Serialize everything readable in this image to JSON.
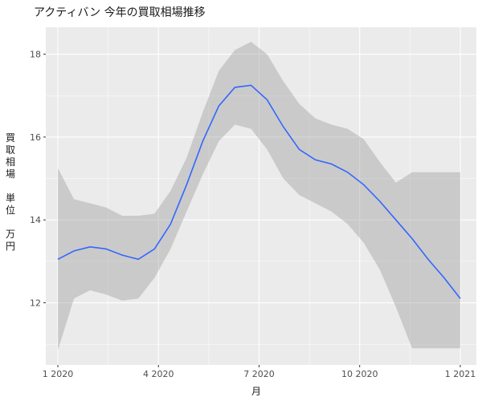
{
  "chart_data": {
    "type": "line",
    "title": "アクティバン 今年の買取相場推移",
    "xlabel": "月",
    "ylabel_lines": [
      "買",
      "取",
      "相",
      "場",
      "",
      "単",
      "位",
      "",
      "万",
      "円"
    ],
    "x_tick_labels": [
      "1 2020",
      "4 2020",
      "7 2020",
      "10 2020",
      "1 2021"
    ],
    "x_ticks": [
      2020.0,
      2020.25,
      2020.5,
      2020.75,
      2021.0
    ],
    "y_tick_labels": [
      "12",
      "14",
      "16",
      "18"
    ],
    "y_ticks": [
      12,
      14,
      16,
      18
    ],
    "xlim": [
      2019.97,
      2021.04
    ],
    "ylim": [
      10.5,
      18.65
    ],
    "grid": true,
    "series": [
      {
        "x": [
          2020.0,
          2020.04,
          2020.08,
          2020.12,
          2020.16,
          2020.2,
          2020.24,
          2020.28,
          2020.32,
          2020.36,
          2020.4,
          2020.44,
          2020.48,
          2020.52,
          2020.56,
          2020.6,
          2020.64,
          2020.68,
          2020.72,
          2020.76,
          2020.8,
          2020.84,
          2020.88,
          2020.92,
          2020.96,
          2021.0
        ],
        "y": [
          13.05,
          13.25,
          13.35,
          13.3,
          13.15,
          13.05,
          13.3,
          13.9,
          14.85,
          15.9,
          16.75,
          17.2,
          17.25,
          16.9,
          16.25,
          15.7,
          15.45,
          15.35,
          15.15,
          14.85,
          14.45,
          14.0,
          13.55,
          13.05,
          12.6,
          12.1
        ],
        "lower": [
          10.85,
          12.1,
          12.3,
          12.2,
          12.05,
          12.1,
          12.6,
          13.3,
          14.2,
          15.1,
          15.9,
          16.3,
          16.2,
          15.7,
          15.0,
          14.6,
          14.4,
          14.2,
          13.9,
          13.45,
          12.8,
          11.9,
          10.9,
          10.9,
          10.9,
          10.9
        ],
        "upper": [
          15.25,
          14.5,
          14.4,
          14.3,
          14.1,
          14.1,
          14.15,
          14.7,
          15.5,
          16.6,
          17.6,
          18.1,
          18.3,
          18.0,
          17.35,
          16.8,
          16.45,
          16.3,
          16.2,
          15.95,
          15.4,
          14.9,
          15.15,
          15.15,
          15.15,
          15.15
        ]
      }
    ]
  },
  "style": {
    "panel_bg": "#ebebeb",
    "grid_major": "#ffffff",
    "line_color": "#3366ff",
    "ribbon_color": "#999999"
  }
}
